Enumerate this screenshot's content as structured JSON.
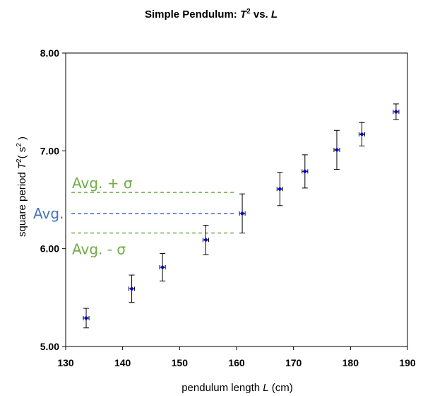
{
  "chart_data": {
    "type": "scatter",
    "title": {
      "main": "Simple Pendulum: ",
      "var1": "T",
      "sup": "2",
      "mid": " vs. ",
      "var2": "L"
    },
    "xlabel": {
      "prefix": "pendulum length ",
      "var": "L",
      "suffix": "  (cm)"
    },
    "ylabel": {
      "prefix": "square period ",
      "var": "T",
      "sup": "2",
      "open": "( s",
      "unit_sup": "2",
      "close": " )"
    },
    "xlim": [
      130,
      190
    ],
    "ylim": [
      5.0,
      8.0
    ],
    "x_ticks": [
      130,
      140,
      150,
      160,
      170,
      180,
      190
    ],
    "x_tick_labels": [
      "130",
      "140",
      "150",
      "160",
      "170",
      "180",
      "190"
    ],
    "y_ticks": [
      5.0,
      6.0,
      7.0,
      8.0
    ],
    "y_tick_labels": [
      "5.00",
      "6.00",
      "7.00",
      "8.00"
    ],
    "grid": false,
    "marker_color": "#0000cc",
    "errorbar_color": "#000000",
    "points": [
      {
        "x": 133.6,
        "y": 5.29,
        "y_err": 0.1,
        "x_err": 0.5
      },
      {
        "x": 141.6,
        "y": 5.59,
        "y_err": 0.14,
        "x_err": 0.5
      },
      {
        "x": 147.0,
        "y": 5.81,
        "y_err": 0.14,
        "x_err": 0.5
      },
      {
        "x": 154.6,
        "y": 6.09,
        "y_err": 0.15,
        "x_err": 0.5
      },
      {
        "x": 161.0,
        "y": 6.36,
        "y_err": 0.2,
        "x_err": 0.5
      },
      {
        "x": 167.6,
        "y": 6.61,
        "y_err": 0.17,
        "x_err": 0.5
      },
      {
        "x": 172.0,
        "y": 6.79,
        "y_err": 0.17,
        "x_err": 0.5
      },
      {
        "x": 177.6,
        "y": 7.01,
        "y_err": 0.2,
        "x_err": 0.5
      },
      {
        "x": 182.0,
        "y": 7.17,
        "y_err": 0.12,
        "x_err": 0.5
      },
      {
        "x": 188.0,
        "y": 7.4,
        "y_err": 0.08,
        "x_err": 0.5
      }
    ],
    "reference_lines": [
      {
        "name": "avg-plus-sigma",
        "label": "Avg. + σ",
        "y": 6.575,
        "x_range": [
          131,
          160
        ],
        "color": "#70ad47",
        "label_pos": "above-left"
      },
      {
        "name": "avg",
        "label": "Avg.",
        "y": 6.36,
        "x_range": [
          131,
          160
        ],
        "color": "#4472c4",
        "label_pos": "left-outside"
      },
      {
        "name": "avg-minus-sigma",
        "label": "Avg. - σ",
        "y": 6.16,
        "x_range": [
          131,
          160
        ],
        "color": "#70ad47",
        "label_pos": "below-left"
      }
    ]
  }
}
